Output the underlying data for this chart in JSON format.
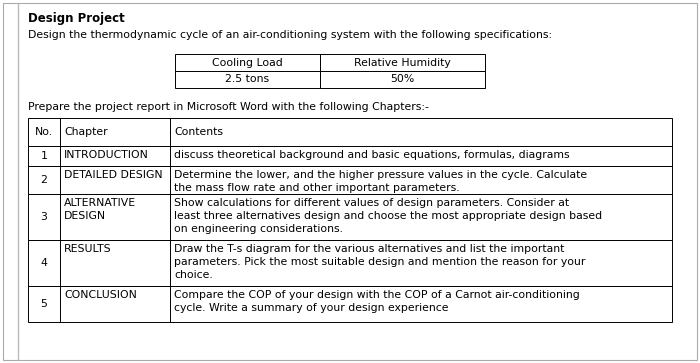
{
  "title": "Design Project",
  "intro_text": "Design the thermodynamic cycle of an air-conditioning system with the following specifications:",
  "spec_table": {
    "headers": [
      "Cooling Load",
      "Relative Humidity"
    ],
    "values": [
      "2.5 tons",
      "50%"
    ]
  },
  "prepare_text": "Prepare the project report in Microsoft Word with the following Chapters:-",
  "chapters_table": {
    "headers": [
      "No.",
      "Chapter",
      "Contents"
    ],
    "rows": [
      [
        "1",
        "INTRODUCTION",
        "discuss theoretical background and basic equations, formulas, diagrams"
      ],
      [
        "2",
        "DETAILED DESIGN",
        "Determine the lower, and the higher pressure values in the cycle. Calculate\nthe mass flow rate and other important parameters."
      ],
      [
        "3",
        "ALTERNATIVE\nDESIGN",
        "Show calculations for different values of design parameters. Consider at\nleast three alternatives design and choose the most appropriate design based\non engineering considerations."
      ],
      [
        "4",
        "RESULTS",
        "Draw the T-s diagram for the various alternatives and list the important\nparameters. Pick the most suitable design and mention the reason for your\nchoice."
      ],
      [
        "5",
        "CONCLUSION",
        "Compare the COP of your design with the COP of a Carnot air-conditioning\ncycle. Write a summary of your design experience"
      ]
    ]
  },
  "bg_color": "#ffffff",
  "border_color": "#000000",
  "text_color": "#000000",
  "font_size": 7.8,
  "title_font_size": 8.5
}
